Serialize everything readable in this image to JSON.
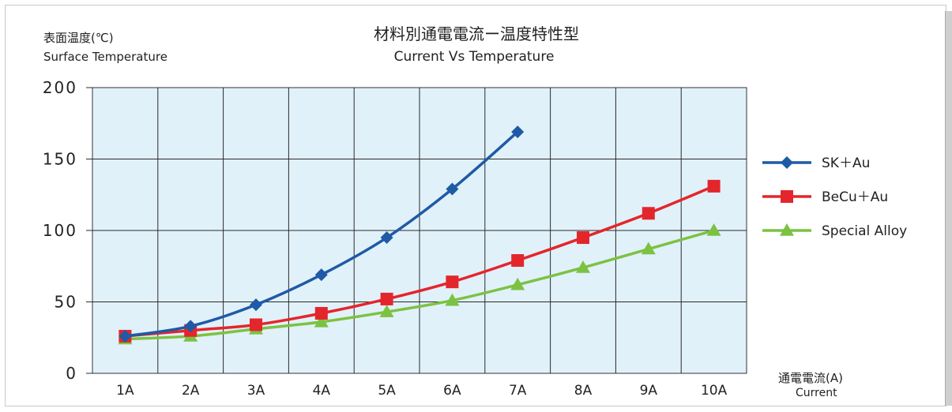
{
  "chart_data": {
    "type": "line",
    "title": "材料別通電電流ー温度特性型",
    "subtitle": "Current Vs Temperature",
    "ylabel": "表面温度(℃)",
    "ylabel_en": "Surface Temperature",
    "xlabel": "通電電流(A)",
    "xlabel_en": "Current",
    "categories": [
      "1A",
      "2A",
      "3A",
      "4A",
      "5A",
      "6A",
      "7A",
      "8A",
      "9A",
      "10A"
    ],
    "ylim": [
      0,
      200
    ],
    "yticks": [
      "0",
      "50",
      "100",
      "150",
      "200"
    ],
    "grid": true,
    "legend_position": "right",
    "series": [
      {
        "name": "SK＋Au",
        "color": "#1f5aa6",
        "marker": "diamond",
        "values": [
          26,
          33,
          48,
          69,
          95,
          129,
          169,
          null,
          null,
          null
        ]
      },
      {
        "name": "BeCu＋Au",
        "color": "#e3262b",
        "marker": "square",
        "values": [
          26,
          30,
          34,
          42,
          52,
          64,
          79,
          95,
          112,
          131
        ]
      },
      {
        "name": "Special Alloy",
        "color": "#7cc242",
        "marker": "triangle",
        "values": [
          24,
          26,
          31,
          36,
          43,
          51,
          62,
          74,
          87,
          100
        ]
      }
    ]
  }
}
